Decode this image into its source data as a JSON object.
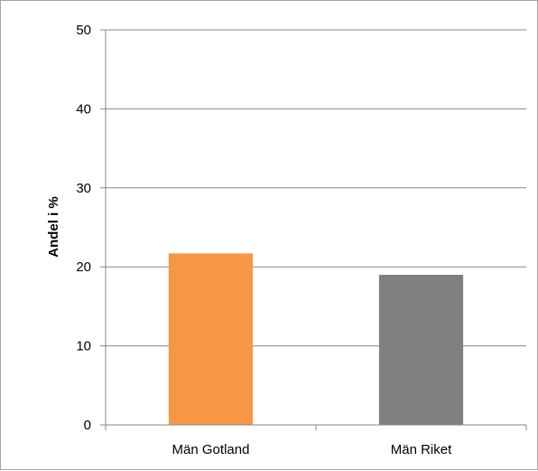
{
  "chart_data": {
    "type": "bar",
    "categories": [
      "Män Gotland",
      "Män Riket"
    ],
    "values": [
      21.7,
      19.0
    ],
    "colors": [
      "#f79646",
      "#808080"
    ],
    "title": "",
    "xlabel": "",
    "ylabel": "Andel i %",
    "ylim": [
      0,
      50
    ],
    "yticks": [
      0,
      10,
      20,
      30,
      40,
      50
    ],
    "grid": true,
    "legend": "none"
  }
}
